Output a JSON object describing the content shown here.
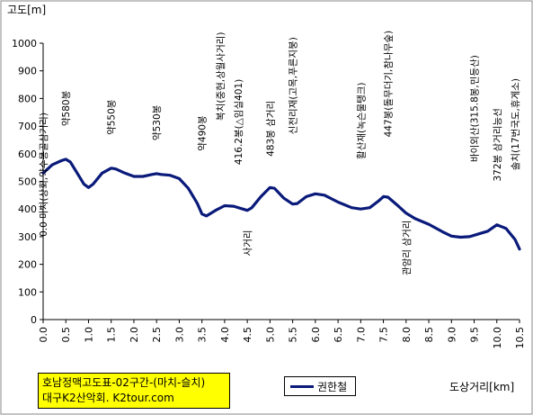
{
  "chart_data": {
    "type": "line",
    "ylabel": "고도[m]",
    "xlabel": "도상거리[km]",
    "ylim": [
      0,
      1000
    ],
    "xlim": [
      0,
      10.5
    ],
    "grid": false,
    "legend_position": "bottom-center",
    "line_color": "#0a1a7a",
    "y_ticks": [
      "0",
      "100",
      "200",
      "300",
      "400",
      "500",
      "600",
      "700",
      "800",
      "900",
      "1000"
    ],
    "x_ticks": [
      "0.0",
      "0.5",
      "1.0",
      "1.5",
      "2.0",
      "2.5",
      "3.0",
      "3.5",
      "4.0",
      "4.5",
      "5.0",
      "5.5",
      "6.0",
      "6.5",
      "7.0",
      "7.5",
      "8.0",
      "8.5",
      "9.0",
      "9.5",
      "10.0",
      "10.5"
    ],
    "series": [
      {
        "name": "권한철",
        "x": [
          0,
          0.2,
          0.4,
          0.5,
          0.6,
          0.75,
          0.9,
          1.0,
          1.1,
          1.3,
          1.5,
          1.6,
          1.8,
          2.0,
          2.2,
          2.4,
          2.5,
          2.6,
          2.8,
          3.0,
          3.2,
          3.4,
          3.5,
          3.6,
          3.8,
          4.0,
          4.2,
          4.4,
          4.5,
          4.6,
          4.8,
          5.0,
          5.1,
          5.3,
          5.5,
          5.6,
          5.8,
          6.0,
          6.2,
          6.5,
          6.8,
          7.0,
          7.2,
          7.4,
          7.5,
          7.6,
          7.8,
          8.0,
          8.2,
          8.5,
          8.8,
          9.0,
          9.2,
          9.4,
          9.6,
          9.8,
          10.0,
          10.2,
          10.4,
          10.5
        ],
        "y": [
          530,
          560,
          575,
          580,
          570,
          530,
          490,
          478,
          490,
          530,
          548,
          545,
          530,
          518,
          518,
          525,
          528,
          525,
          522,
          510,
          475,
          420,
          382,
          375,
          395,
          412,
          410,
          400,
          395,
          405,
          445,
          478,
          475,
          440,
          418,
          420,
          445,
          455,
          450,
          425,
          405,
          400,
          405,
          430,
          445,
          443,
          415,
          385,
          365,
          345,
          318,
          302,
          298,
          300,
          310,
          320,
          343,
          330,
          290,
          255
        ]
      }
    ],
    "annotations": [
      {
        "text": "0.0 마치(상회,약수동골삼거리)",
        "x": 0.0,
        "y": 300
      },
      {
        "text": "약580봉",
        "x": 0.5,
        "y": 700
      },
      {
        "text": "약550봉",
        "x": 1.5,
        "y": 668
      },
      {
        "text": "약530봉",
        "x": 2.5,
        "y": 648
      },
      {
        "text": "약490봉",
        "x": 3.5,
        "y": 610
      },
      {
        "text": "복치(중현,상월사거리)",
        "x": 3.9,
        "y": 720
      },
      {
        "text": "416.2봉(△임실401)",
        "x": 4.3,
        "y": 560
      },
      {
        "text": "사거리",
        "x": 4.5,
        "y": 230
      },
      {
        "text": "483봉 삼거리",
        "x": 5.0,
        "y": 590
      },
      {
        "text": "신전리재(고목,푸른지붕)",
        "x": 5.5,
        "y": 670
      },
      {
        "text": "활산재(녹슨물탱크)",
        "x": 7.0,
        "y": 580
      },
      {
        "text": "447봉(돌무더기,참나무숲)",
        "x": 7.6,
        "y": 660
      },
      {
        "text": "관암리 삼거리",
        "x": 8.0,
        "y": 160
      },
      {
        "text": "바이외산(315.8봉,민등산)",
        "x": 9.5,
        "y": 570
      },
      {
        "text": "372봉 삼거리능선",
        "x": 10.0,
        "y": 500
      },
      {
        "text": "솔치(17번국도,휴게소)",
        "x": 10.4,
        "y": 540
      }
    ]
  },
  "footer": {
    "line1": "호남정맥고도표-02구간-(마치-슬치)",
    "line2": "대구K2산악회. K2tour.com"
  }
}
